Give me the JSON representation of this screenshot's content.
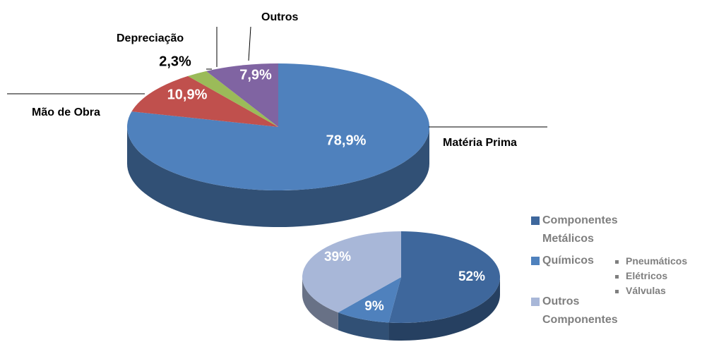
{
  "chart_data": [
    {
      "type": "pie",
      "categories": [
        "Matéria Prima",
        "Mão de Obra",
        "Depreciação",
        "Outros"
      ],
      "values": [
        78.9,
        10.9,
        2.3,
        7.9
      ],
      "value_labels": [
        "78,9%",
        "10,9%",
        "2,3%",
        "7,9%"
      ],
      "colors": [
        "#4f81bd",
        "#c0504d",
        "#9bbb59",
        "#8064a2"
      ]
    },
    {
      "type": "pie",
      "categories": [
        "Componentes Metálicos",
        "Químicos",
        "Outros Componentes"
      ],
      "values": [
        52,
        9,
        39
      ],
      "value_labels": [
        "52%",
        "9%",
        "39%"
      ],
      "colors": [
        "#3e679c",
        "#4f81bd",
        "#a8b7d8"
      ],
      "notes": [
        "Pneumáticos",
        "Elétricos",
        "Válvulas"
      ]
    }
  ]
}
